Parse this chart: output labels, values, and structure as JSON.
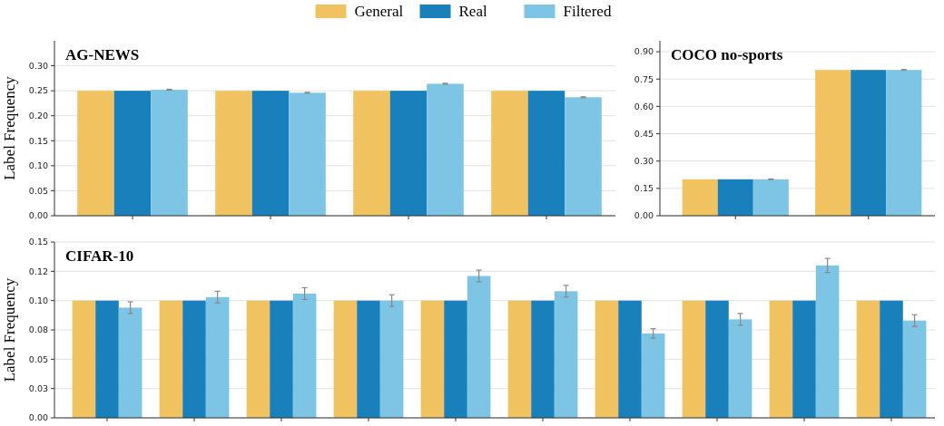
{
  "chart_data": [
    {
      "type": "bar",
      "title": "AG-NEWS",
      "ylabel": "Label Frequency",
      "categories": [
        null,
        null,
        null,
        null
      ],
      "ylim": [
        0,
        0.35
      ],
      "yticks": [
        {
          "value": 0,
          "label": "0.00"
        },
        {
          "value": 0.05,
          "label": "0.05"
        },
        {
          "value": 0.1,
          "label": "0.10"
        },
        {
          "value": 0.15,
          "label": "0.15"
        },
        {
          "value": 0.2,
          "label": "0.20"
        },
        {
          "value": 0.25,
          "label": "0.25"
        },
        {
          "value": 0.3,
          "label": "0.30"
        }
      ],
      "grid": "y",
      "legend": "top",
      "tick_labels": "y",
      "series": [
        {
          "name": "General",
          "color": "#f0c360",
          "values": [
            0.25,
            0.25,
            0.25,
            0.25
          ]
        },
        {
          "name": "Real",
          "color": "#1a80bb",
          "values": [
            0.25,
            0.25,
            0.25,
            0.25
          ]
        },
        {
          "name": "Filtered",
          "color": "#7ec4e5",
          "values": [
            0.252,
            0.246,
            0.264,
            0.237
          ],
          "errors": [
            0.001,
            0.001,
            0.001,
            0.001
          ]
        }
      ]
    },
    {
      "type": "bar",
      "title": "COCO no-sports",
      "categories": [
        null,
        null
      ],
      "ylim": [
        0,
        0.96
      ],
      "yticks": [
        {
          "value": 0,
          "label": "0.00"
        },
        {
          "value": 0.15,
          "label": "0.15"
        },
        {
          "value": 0.3,
          "label": "0.30"
        },
        {
          "value": 0.45,
          "label": "0.45"
        },
        {
          "value": 0.6,
          "label": "0.60"
        },
        {
          "value": 0.75,
          "label": "0.75"
        },
        {
          "value": 0.9,
          "label": "0.90"
        }
      ],
      "grid": "y",
      "tick_labels": "y",
      "series": [
        {
          "color": "#f0c360",
          "values": [
            0.2,
            0.8
          ]
        },
        {
          "color": "#1a80bb",
          "values": [
            0.2,
            0.8
          ]
        },
        {
          "color": "#7ec4e5",
          "values": [
            0.2,
            0.8
          ],
          "errors": [
            0.002,
            0.002
          ]
        }
      ]
    },
    {
      "type": "bar",
      "title": "CIFAR-10",
      "ylabel": "Label Frequency",
      "categories": [
        null,
        null,
        null,
        null,
        null,
        null,
        null,
        null,
        null,
        null
      ],
      "ylim": [
        0,
        0.15
      ],
      "yticks": [
        {
          "value": 0,
          "label": "0.00"
        },
        {
          "value": 0.025,
          "label": "0.03"
        },
        {
          "value": 0.05,
          "label": "0.05"
        },
        {
          "value": 0.075,
          "label": "0.08"
        },
        {
          "value": 0.1,
          "label": "0.10"
        },
        {
          "value": 0.125,
          "label": "0.12"
        },
        {
          "value": 0.15,
          "label": "0.15"
        }
      ],
      "grid": "y",
      "tick_labels": "y",
      "series": [
        {
          "color": "#f0c360",
          "values": [
            0.1,
            0.1,
            0.1,
            0.1,
            0.1,
            0.1,
            0.1,
            0.1,
            0.1,
            0.1
          ]
        },
        {
          "color": "#1a80bb",
          "values": [
            0.1,
            0.1,
            0.1,
            0.1,
            0.1,
            0.1,
            0.1,
            0.1,
            0.1,
            0.1
          ]
        },
        {
          "color": "#7ec4e5",
          "values": [
            0.094,
            0.103,
            0.106,
            0.1,
            0.121,
            0.108,
            0.072,
            0.084,
            0.13,
            0.083
          ],
          "errors": [
            0.005,
            0.005,
            0.005,
            0.005,
            0.005,
            0.005,
            0.004,
            0.005,
            0.006,
            0.005
          ]
        }
      ]
    }
  ]
}
